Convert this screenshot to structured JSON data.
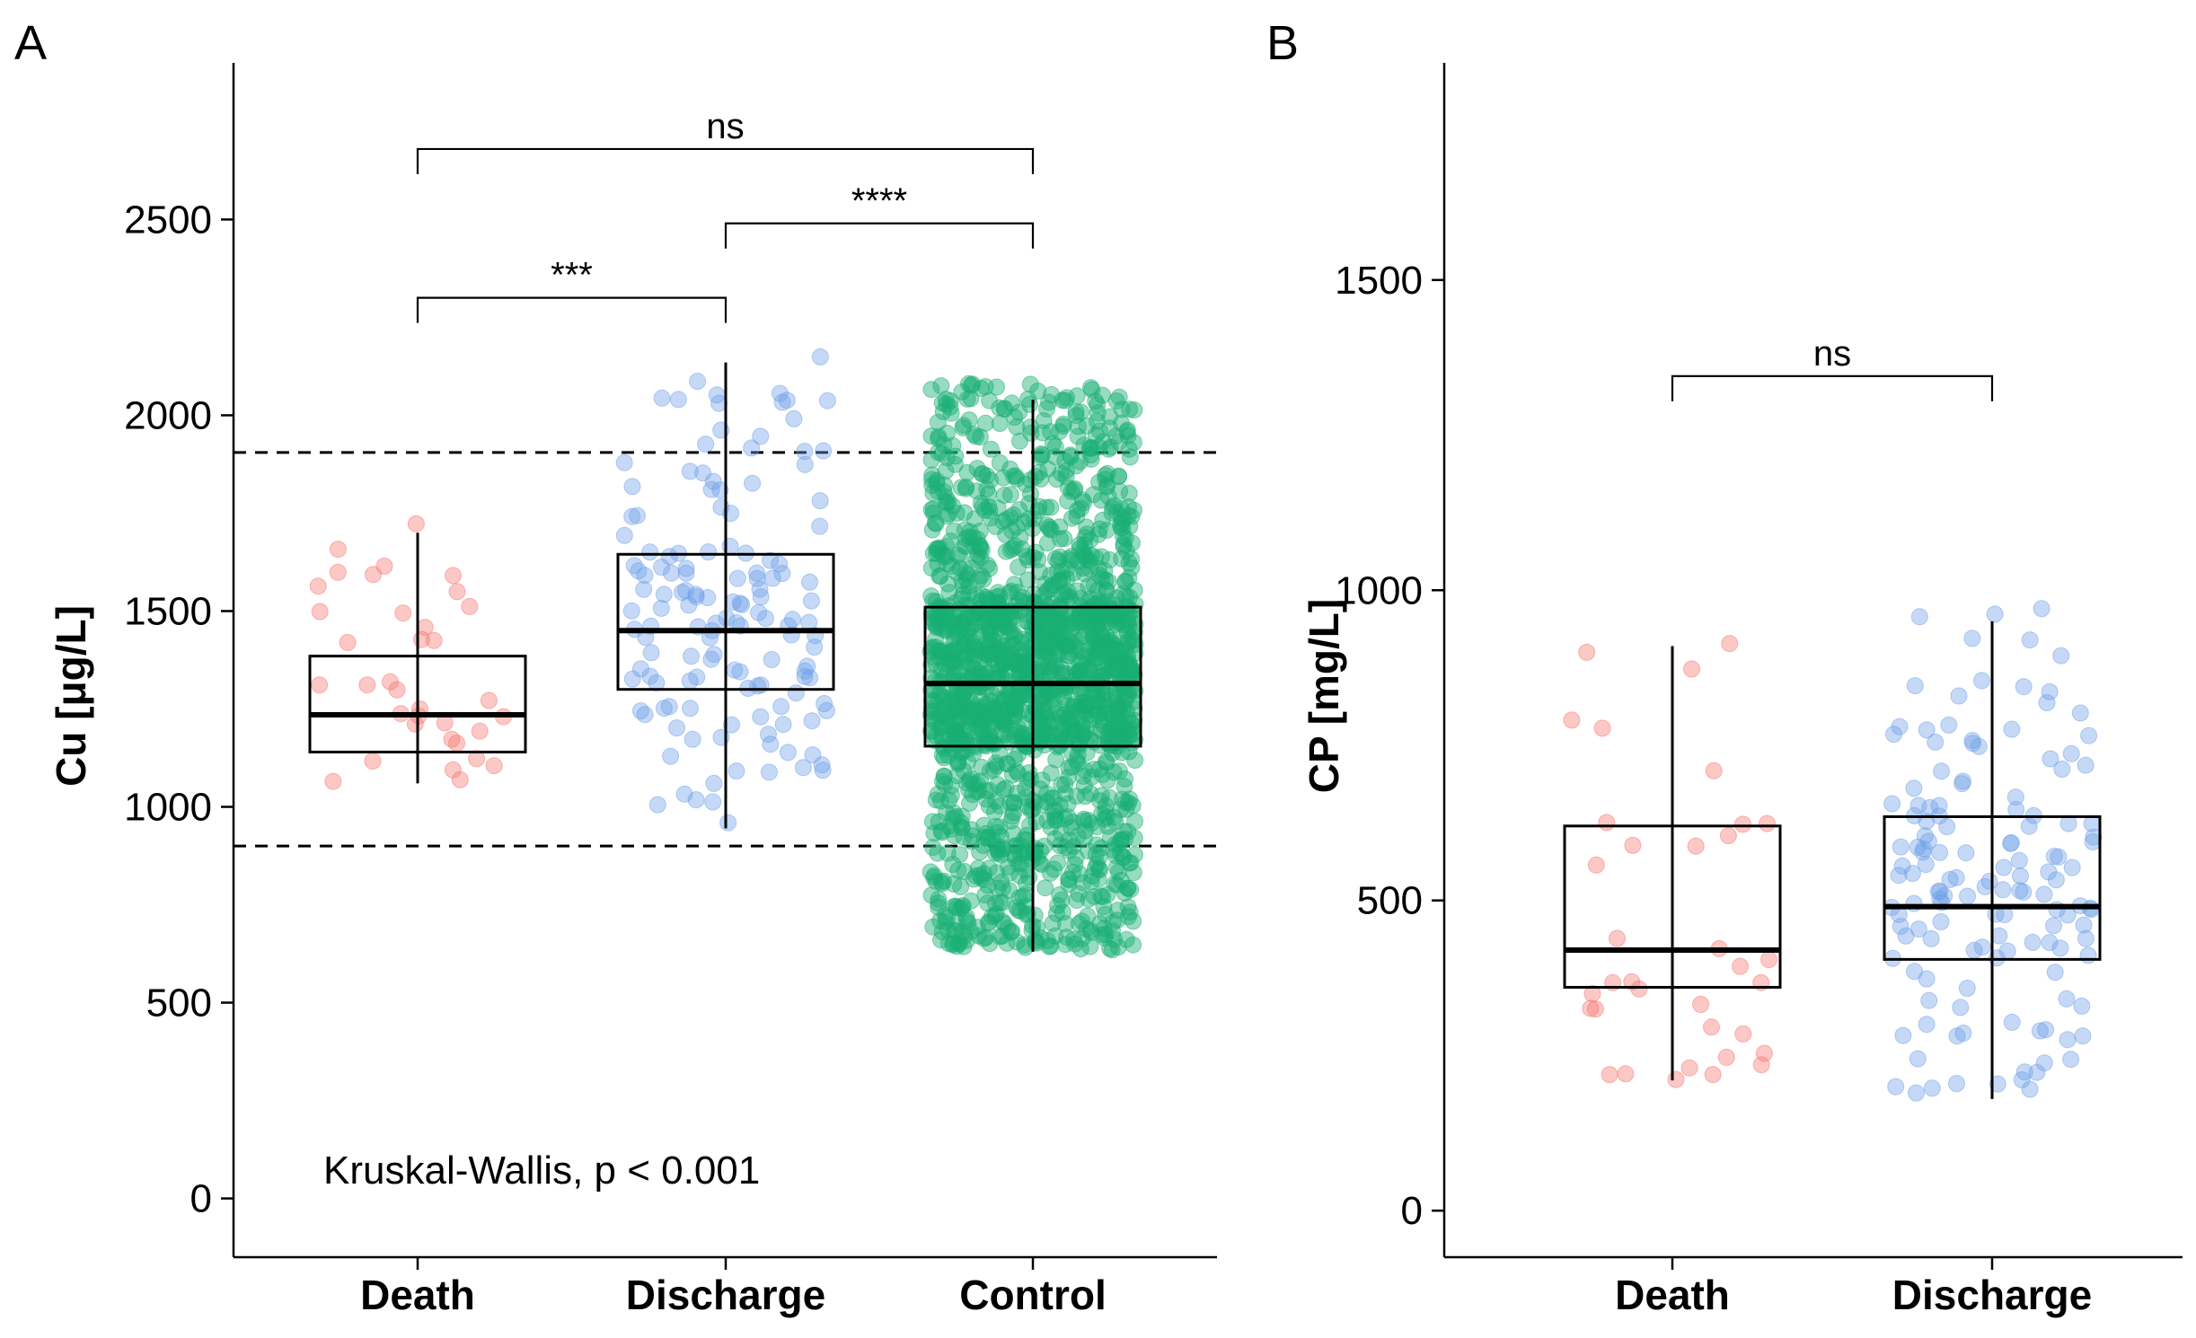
{
  "chart_data": [
    {
      "panel": "A",
      "type": "box",
      "ylabel": "Cu [μg/L]",
      "ylim": [
        -150,
        2900
      ],
      "yticks": [
        0,
        500,
        1000,
        1500,
        2000,
        2500
      ],
      "categories": [
        "Death",
        "Discharge",
        "Control"
      ],
      "colors": [
        "#F8766D",
        "#6F9FE8",
        "#19B073"
      ],
      "boxes": [
        {
          "name": "Death",
          "whisker_low": 1060,
          "q1": 1140,
          "median": 1235,
          "q3": 1385,
          "whisker_high": 1700
        },
        {
          "name": "Discharge",
          "whisker_low": 945,
          "q1": 1300,
          "median": 1450,
          "q3": 1645,
          "whisker_high": 2135
        },
        {
          "name": "Control",
          "whisker_low": 630,
          "q1": 1155,
          "median": 1315,
          "q3": 1510,
          "whisker_high": 2040
        }
      ],
      "reference_lines": [
        900,
        1905
      ],
      "comparisons": [
        {
          "groups": [
            "Death",
            "Control"
          ],
          "label": "ns",
          "y": 2680
        },
        {
          "groups": [
            "Discharge",
            "Control"
          ],
          "label": "****",
          "y": 2490
        },
        {
          "groups": [
            "Death",
            "Discharge"
          ],
          "label": "***",
          "y": 2300
        }
      ],
      "annotation": "Kruskal-Wallis, p < 0.001"
    },
    {
      "panel": "B",
      "type": "box",
      "ylabel": "CP [mg/L]",
      "ylim": [
        -75,
        1850
      ],
      "yticks": [
        0,
        500,
        1000,
        1500
      ],
      "categories": [
        "Death",
        "Discharge"
      ],
      "colors": [
        "#F8766D",
        "#6F9FE8"
      ],
      "boxes": [
        {
          "name": "Death",
          "whisker_low": 210,
          "q1": 360,
          "median": 420,
          "q3": 620,
          "whisker_high": 910
        },
        {
          "name": "Discharge",
          "whisker_low": 180,
          "q1": 405,
          "median": 490,
          "q3": 635,
          "whisker_high": 950
        }
      ],
      "comparisons": [
        {
          "groups": [
            "Death",
            "Discharge"
          ],
          "label": "ns",
          "y": 1345
        }
      ]
    }
  ]
}
